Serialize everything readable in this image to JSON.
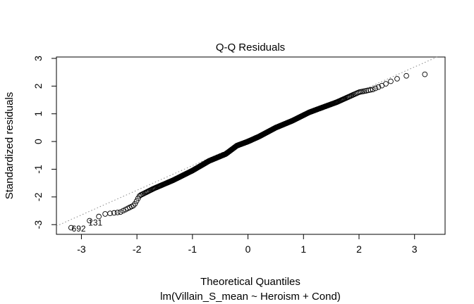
{
  "chart_data": {
    "type": "scatter",
    "title": "Q-Q Residuals",
    "xlabel": "Theoretical Quantiles",
    "subtitle": "lm(Villain_S_mean ~ Heroism + Cond)",
    "ylabel": "Standardized residuals",
    "xlim": [
      -3.45,
      3.55
    ],
    "ylim": [
      -3.35,
      3.05
    ],
    "x_ticks": [
      -3,
      -2,
      -1,
      0,
      1,
      2,
      3
    ],
    "y_ticks": [
      -3,
      -2,
      -1,
      0,
      1,
      2,
      3
    ],
    "x_tick_labels": [
      "-3",
      "-2",
      "-1",
      "0",
      "1",
      "2",
      "3"
    ],
    "y_tick_labels": [
      "-3",
      "-2",
      "-1",
      "0",
      "1",
      "2",
      "3"
    ],
    "grid": false,
    "reference_line": {
      "style": "dotted",
      "color": "#888888",
      "slope": 0.89,
      "intercept": 0.02
    },
    "point_labels": [
      {
        "text": "692",
        "x": -3.24,
        "y": -3.15
      },
      {
        "text": "131",
        "x": -2.94,
        "y": -2.93
      }
    ],
    "quantile_curve": [
      [
        -3.24,
        -3.15
      ],
      [
        -2.94,
        -2.93
      ],
      [
        -2.75,
        -2.77
      ],
      [
        -2.6,
        -2.62
      ],
      [
        -2.3,
        -2.55
      ],
      [
        -2.05,
        -2.3
      ],
      [
        -1.95,
        -1.95
      ],
      [
        -1.7,
        -1.7
      ],
      [
        -1.35,
        -1.4
      ],
      [
        -1.0,
        -1.05
      ],
      [
        -0.7,
        -0.7
      ],
      [
        -0.4,
        -0.45
      ],
      [
        -0.2,
        -0.15
      ],
      [
        0.0,
        0.0
      ],
      [
        0.2,
        0.18
      ],
      [
        0.5,
        0.5
      ],
      [
        0.8,
        0.75
      ],
      [
        1.1,
        1.05
      ],
      [
        1.3,
        1.2
      ],
      [
        1.6,
        1.42
      ],
      [
        1.8,
        1.6
      ],
      [
        2.0,
        1.78
      ],
      [
        2.25,
        1.88
      ],
      [
        2.45,
        2.05
      ],
      [
        2.6,
        2.2
      ],
      [
        2.8,
        2.35
      ],
      [
        2.93,
        2.4
      ],
      [
        3.24,
        2.43
      ]
    ],
    "n_points": 692
  }
}
